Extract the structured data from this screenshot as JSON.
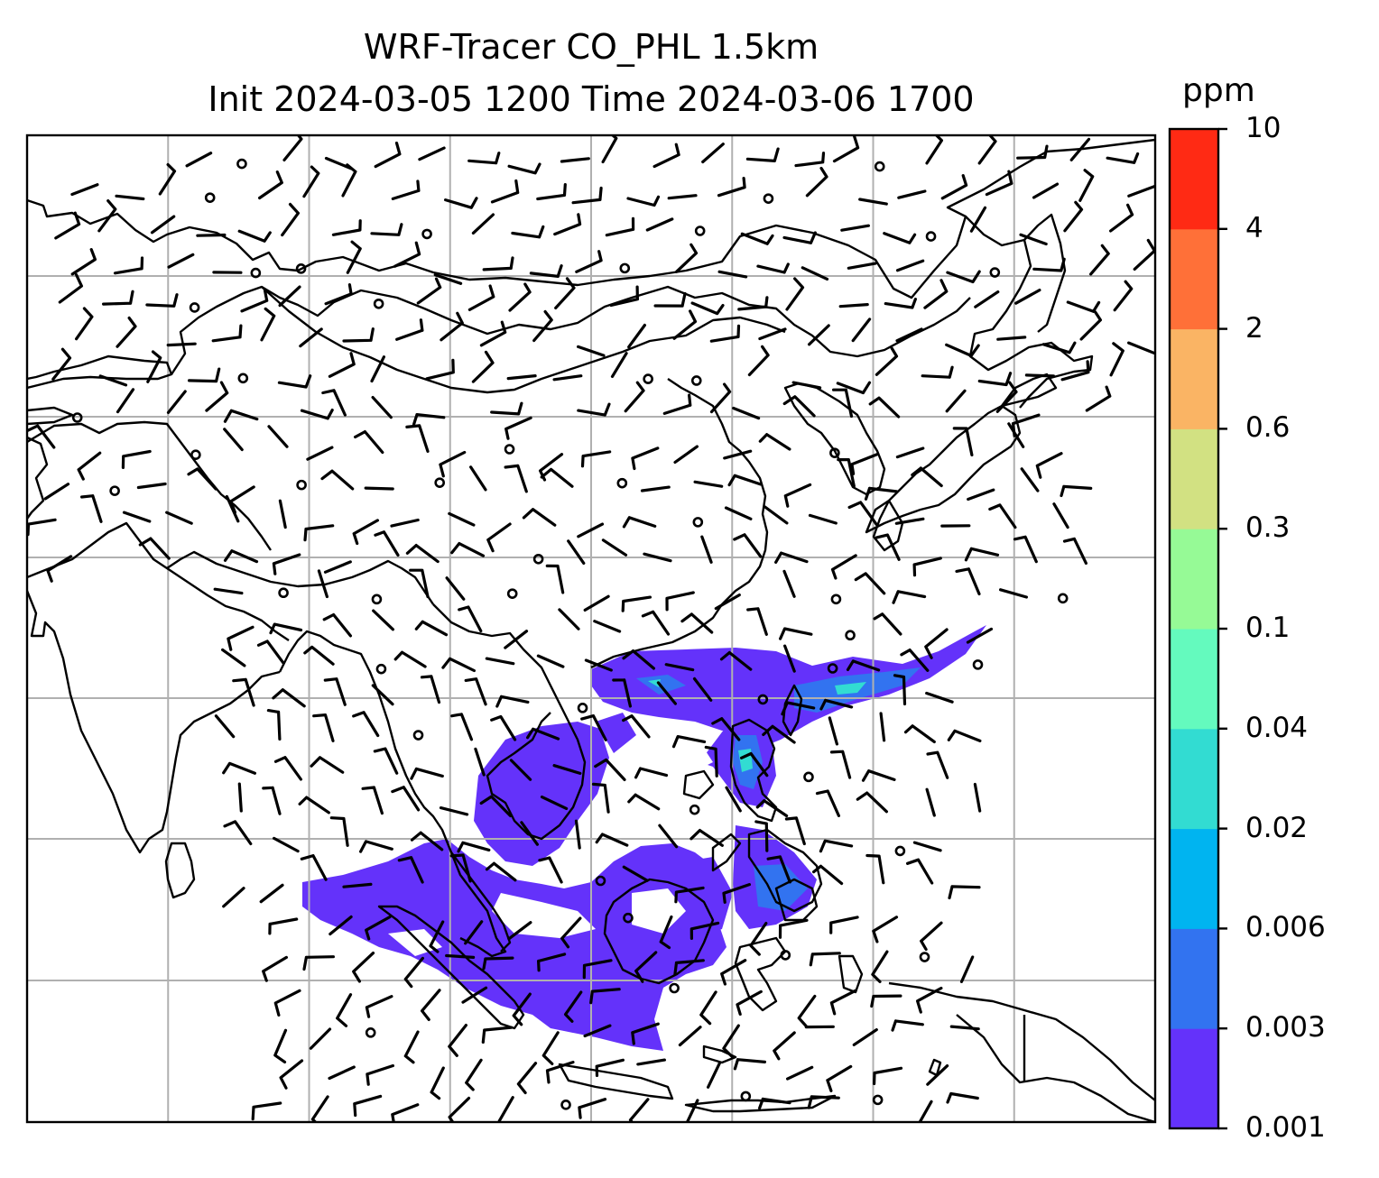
{
  "title": {
    "line1": "WRF-Tracer CO_PHL 1.5km",
    "line2": "Init 2024-03-05 1200 Time 2024-03-06 1700"
  },
  "colorbar": {
    "unit": "ppm",
    "levels": [
      "0.001",
      "0.003",
      "0.006",
      "0.02",
      "0.04",
      "0.1",
      "0.3",
      "0.6",
      "2",
      "4",
      "10"
    ],
    "colors": [
      "#6432fa",
      "#3273f0",
      "#00b4f0",
      "#32dcd2",
      "#64fabe",
      "#96fa96",
      "#d2e182",
      "#fab464",
      "#ff7038",
      "#ff2a14"
    ]
  },
  "map": {
    "gridlines": true,
    "coastline_color": "#000000",
    "plume_color": "#6432fa",
    "plume_core_color": "#3273f0",
    "plume_hotspot_color": "#32dcd2",
    "barb_color": "#000000"
  }
}
